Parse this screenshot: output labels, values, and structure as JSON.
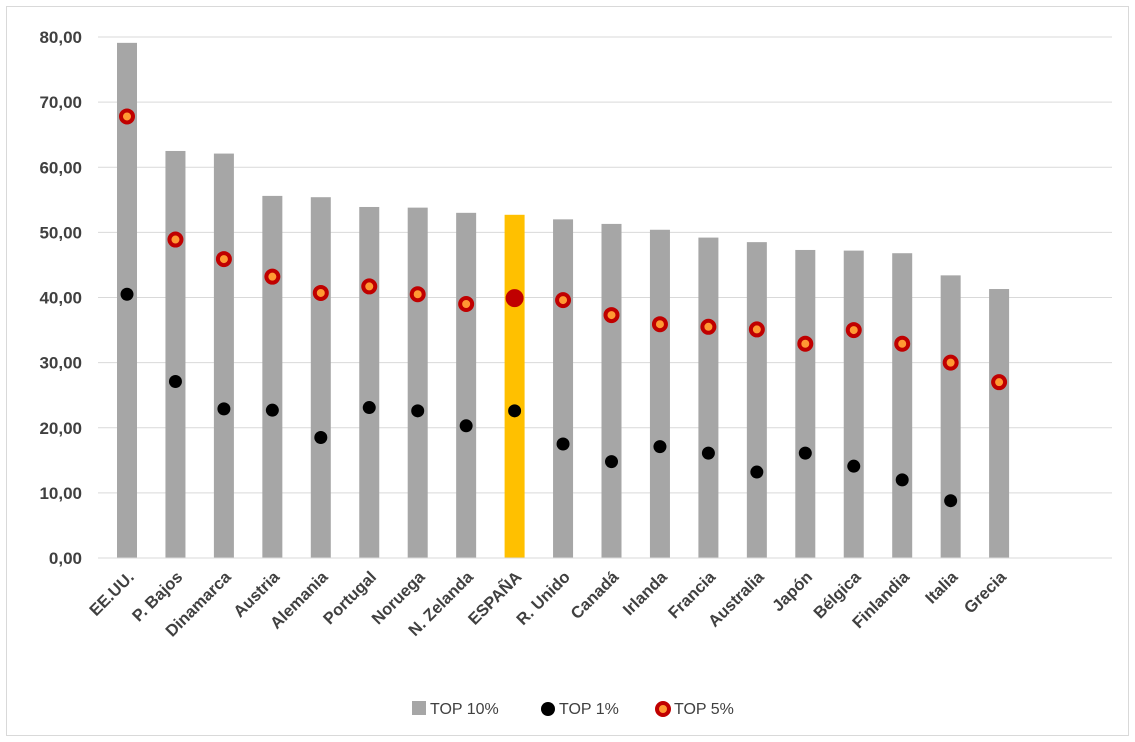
{
  "chart_data": {
    "type": "bar",
    "title": "",
    "xlabel": "",
    "ylabel": "",
    "ylim": [
      0,
      80
    ],
    "yticks": [
      0,
      10,
      20,
      30,
      40,
      50,
      60,
      70,
      80
    ],
    "ytick_labels": [
      "0,00",
      "10,00",
      "20,00",
      "30,00",
      "40,00",
      "50,00",
      "60,00",
      "70,00",
      "80,00"
    ],
    "grid": true,
    "legend_position": "bottom",
    "categories": [
      "EE.UU.",
      "P. Bajos",
      "Dinamarca",
      "Austria",
      "Alemania",
      "Portugal",
      "Noruega",
      "N. Zelanda",
      "ESPAÑA",
      "R. Unido",
      "Canadá",
      "Irlanda",
      "Francia",
      "Australia",
      "Japón",
      "Bélgica",
      "Finlandia",
      "Italia",
      "Grecia"
    ],
    "highlight_category": "ESPAÑA",
    "colors": {
      "bar": "#a6a6a6",
      "highlight_bar": "#ffc000",
      "top1": "#000000",
      "top5_fill": "#ff9933",
      "top5_ring": "#c00000",
      "grid": "#d9d9d9"
    },
    "series": [
      {
        "name": "TOP 10%",
        "kind": "bar",
        "values": [
          79.1,
          62.5,
          62.1,
          55.6,
          55.4,
          53.9,
          53.8,
          53.0,
          52.7,
          52.0,
          51.3,
          50.4,
          49.2,
          48.5,
          47.3,
          47.2,
          46.8,
          43.4,
          41.3
        ]
      },
      {
        "name": "TOP 1%",
        "kind": "marker",
        "values": [
          40.5,
          27.1,
          22.9,
          22.7,
          18.5,
          23.1,
          22.6,
          20.3,
          22.6,
          17.5,
          14.8,
          17.1,
          16.1,
          13.2,
          16.1,
          14.1,
          12.0,
          8.8,
          null
        ]
      },
      {
        "name": "TOP 5%",
        "kind": "marker",
        "values": [
          67.8,
          48.9,
          45.9,
          43.2,
          40.7,
          41.7,
          40.5,
          39.0,
          39.9,
          39.6,
          37.3,
          35.9,
          35.5,
          35.1,
          32.9,
          35.0,
          32.9,
          30.0,
          27.0
        ]
      }
    ]
  }
}
